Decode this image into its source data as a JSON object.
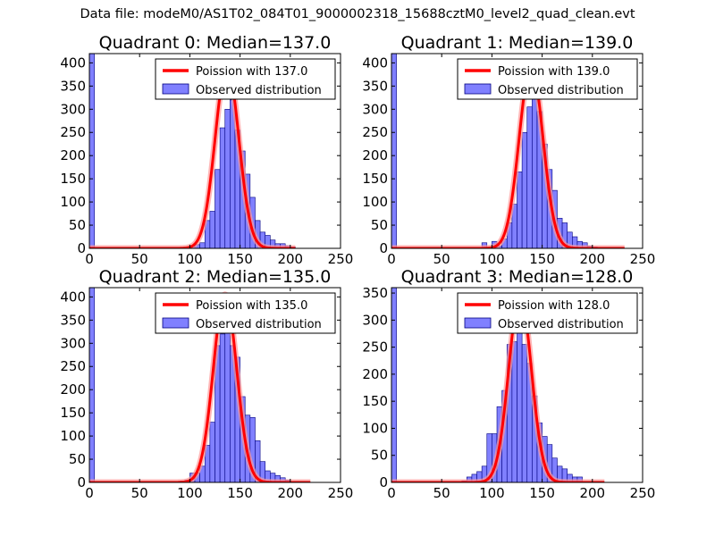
{
  "suptitle": "Data file: modeM0/AS1T02_084T01_9000002318_15688cztM0_level2_quad_clean.evt",
  "colors": {
    "hist_fill": "#8080ff",
    "hist_edge": "#00007f",
    "fit_line": "#ff0000",
    "fit_shadow": "#ff9999"
  },
  "chart_data": [
    {
      "type": "bar",
      "title": "Quadrant 0: Median=137.0",
      "xlim": [
        0,
        250
      ],
      "ylim": [
        0,
        420
      ],
      "xticks": [
        0,
        50,
        100,
        150,
        200,
        250
      ],
      "yticks": [
        0,
        50,
        100,
        150,
        200,
        250,
        300,
        350,
        400
      ],
      "legend": [
        "Poission with 137.0",
        "Observed distribution"
      ],
      "legend_location": "top-right",
      "bin_width": 5,
      "bins": [
        [
          0,
          420
        ],
        [
          95,
          2
        ],
        [
          100,
          5
        ],
        [
          105,
          8
        ],
        [
          110,
          12
        ],
        [
          115,
          60
        ],
        [
          120,
          80
        ],
        [
          125,
          170
        ],
        [
          130,
          260
        ],
        [
          135,
          300
        ],
        [
          140,
          320
        ],
        [
          145,
          255
        ],
        [
          150,
          210
        ],
        [
          155,
          160
        ],
        [
          160,
          110
        ],
        [
          165,
          60
        ],
        [
          170,
          35
        ],
        [
          175,
          28
        ],
        [
          180,
          18
        ],
        [
          185,
          10
        ],
        [
          190,
          10
        ],
        [
          195,
          6
        ],
        [
          200,
          3
        ]
      ],
      "poisson": {
        "mean": 137.0,
        "peak": 395,
        "x_start": 0,
        "x_end": 205
      }
    },
    {
      "type": "bar",
      "title": "Quadrant 1: Median=139.0",
      "xlim": [
        0,
        250
      ],
      "ylim": [
        0,
        420
      ],
      "xticks": [
        0,
        50,
        100,
        150,
        200,
        250
      ],
      "yticks": [
        0,
        50,
        100,
        150,
        200,
        250,
        300,
        350,
        400
      ],
      "legend": [
        "Poission with 139.0",
        "Observed distribution"
      ],
      "legend_location": "top-right",
      "bin_width": 5,
      "bins": [
        [
          0,
          420
        ],
        [
          85,
          2
        ],
        [
          90,
          12
        ],
        [
          95,
          2
        ],
        [
          100,
          15
        ],
        [
          105,
          5
        ],
        [
          110,
          20
        ],
        [
          115,
          55
        ],
        [
          120,
          95
        ],
        [
          125,
          165
        ],
        [
          130,
          250
        ],
        [
          135,
          305
        ],
        [
          140,
          330
        ],
        [
          145,
          295
        ],
        [
          150,
          225
        ],
        [
          155,
          170
        ],
        [
          160,
          125
        ],
        [
          165,
          65
        ],
        [
          170,
          55
        ],
        [
          175,
          35
        ],
        [
          180,
          25
        ],
        [
          185,
          15
        ],
        [
          190,
          12
        ],
        [
          195,
          5
        ],
        [
          200,
          3
        ],
        [
          210,
          2
        ]
      ],
      "poisson": {
        "mean": 139.0,
        "peak": 395,
        "x_start": 0,
        "x_end": 232
      }
    },
    {
      "type": "bar",
      "title": "Quadrant 2: Median=135.0",
      "xlim": [
        0,
        250
      ],
      "ylim": [
        0,
        420
      ],
      "xticks": [
        0,
        50,
        100,
        150,
        200,
        250
      ],
      "yticks": [
        0,
        50,
        100,
        150,
        200,
        250,
        300,
        350,
        400
      ],
      "legend": [
        "Poission with 135.0",
        "Observed distribution"
      ],
      "legend_location": "top-right",
      "bin_width": 5,
      "bins": [
        [
          0,
          420
        ],
        [
          80,
          2
        ],
        [
          90,
          3
        ],
        [
          95,
          5
        ],
        [
          100,
          20
        ],
        [
          105,
          20
        ],
        [
          110,
          35
        ],
        [
          115,
          80
        ],
        [
          120,
          130
        ],
        [
          125,
          295
        ],
        [
          130,
          320
        ],
        [
          135,
          400
        ],
        [
          140,
          295
        ],
        [
          145,
          270
        ],
        [
          150,
          185
        ],
        [
          155,
          145
        ],
        [
          160,
          140
        ],
        [
          165,
          90
        ],
        [
          170,
          45
        ],
        [
          175,
          25
        ],
        [
          180,
          20
        ],
        [
          185,
          15
        ],
        [
          190,
          10
        ],
        [
          195,
          5
        ],
        [
          200,
          2
        ]
      ],
      "poisson": {
        "mean": 135.0,
        "peak": 405,
        "x_start": 0,
        "x_end": 220
      }
    },
    {
      "type": "bar",
      "title": "Quadrant 3: Median=128.0",
      "xlim": [
        0,
        250
      ],
      "ylim": [
        0,
        360
      ],
      "xticks": [
        0,
        50,
        100,
        150,
        200,
        250
      ],
      "yticks": [
        0,
        50,
        100,
        150,
        200,
        250,
        300,
        350
      ],
      "legend": [
        "Poission with 128.0",
        "Observed distribution"
      ],
      "legend_location": "top-right",
      "bin_width": 5,
      "bins": [
        [
          0,
          360
        ],
        [
          60,
          2
        ],
        [
          70,
          3
        ],
        [
          75,
          10
        ],
        [
          80,
          15
        ],
        [
          85,
          20
        ],
        [
          90,
          30
        ],
        [
          95,
          90
        ],
        [
          100,
          90
        ],
        [
          105,
          140
        ],
        [
          110,
          170
        ],
        [
          115,
          255
        ],
        [
          120,
          260
        ],
        [
          125,
          305
        ],
        [
          130,
          255
        ],
        [
          135,
          220
        ],
        [
          140,
          160
        ],
        [
          145,
          110
        ],
        [
          150,
          85
        ],
        [
          155,
          70
        ],
        [
          160,
          45
        ],
        [
          165,
          30
        ],
        [
          170,
          25
        ],
        [
          175,
          15
        ],
        [
          180,
          10
        ],
        [
          185,
          10
        ]
      ],
      "poisson": {
        "mean": 128.0,
        "peak": 345,
        "x_start": 0,
        "x_end": 212
      }
    }
  ]
}
